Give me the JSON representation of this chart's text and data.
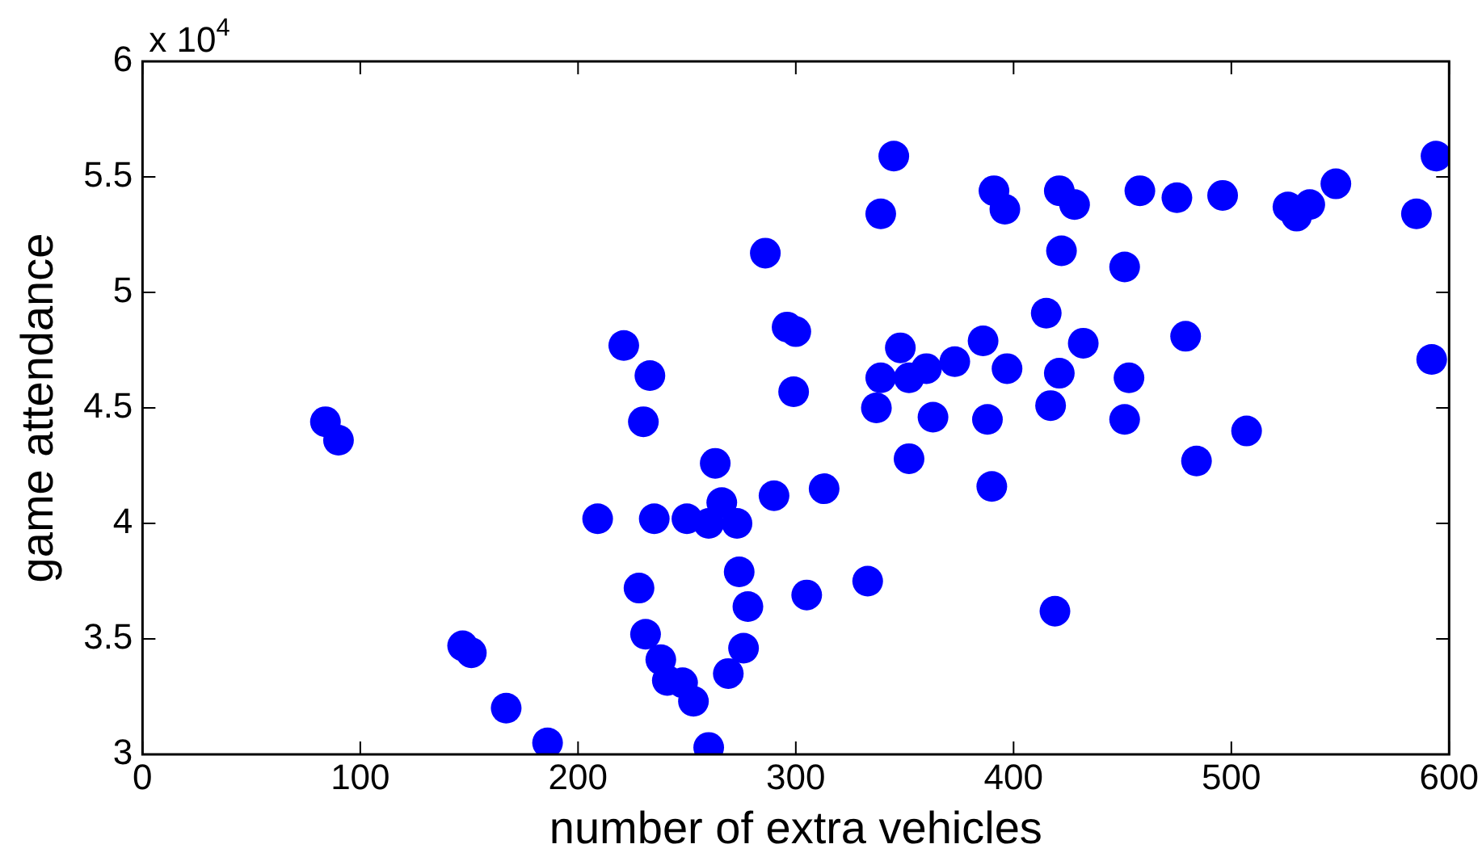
{
  "chart_data": {
    "type": "scatter",
    "xlabel": "number of extra vehicles",
    "ylabel": "game attendance",
    "annotations": [
      "x 10$^{4}$"
    ],
    "xlim": [
      0,
      600
    ],
    "xticks": [
      0,
      100,
      200,
      300,
      400,
      500,
      600
    ],
    "ylim": [
      3,
      6
    ],
    "yticks": [
      3,
      3.5,
      4,
      4.5,
      5,
      5.5,
      6
    ],
    "grid": false,
    "marker": "circle",
    "series": [
      {
        "color": "#0000ff",
        "x": [
          84,
          90,
          147,
          151,
          167,
          186,
          209,
          221,
          233,
          230,
          235,
          250,
          260,
          266,
          263,
          273,
          290,
          313,
          286,
          296,
          300,
          299,
          228,
          274,
          278,
          305,
          333,
          231,
          238,
          241,
          248,
          253,
          276,
          269,
          260,
          345,
          339,
          339,
          337,
          348,
          352,
          360,
          373,
          363,
          352,
          391,
          396,
          421,
          428,
          458,
          475,
          496,
          526,
          530,
          536,
          548,
          585,
          594,
          422,
          451,
          415,
          386,
          432,
          479,
          592,
          397,
          421,
          453,
          388,
          417,
          451,
          507,
          484,
          390,
          419
        ],
        "values": [
          4.44,
          4.36,
          3.47,
          3.44,
          3.2,
          3.05,
          4.02,
          4.77,
          4.64,
          4.44,
          4.02,
          4.02,
          4.0,
          4.09,
          4.26,
          4.0,
          4.12,
          4.15,
          5.17,
          4.85,
          4.83,
          4.57,
          3.72,
          3.79,
          3.64,
          3.69,
          3.75,
          3.52,
          3.41,
          3.32,
          3.31,
          3.23,
          3.46,
          3.35,
          3.03,
          5.59,
          5.34,
          4.63,
          4.5,
          4.76,
          4.63,
          4.67,
          4.7,
          4.46,
          4.28,
          5.44,
          5.36,
          5.44,
          5.38,
          5.44,
          5.41,
          5.42,
          5.37,
          5.33,
          5.38,
          5.47,
          5.34,
          5.59,
          5.18,
          5.11,
          4.91,
          4.79,
          4.78,
          4.81,
          4.71,
          4.67,
          4.65,
          4.63,
          4.45,
          4.51,
          4.45,
          4.4,
          4.27,
          4.16,
          3.62
        ]
      }
    ]
  }
}
